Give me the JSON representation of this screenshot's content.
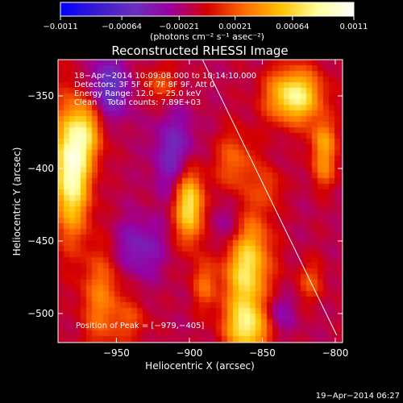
{
  "chart_data": {
    "type": "heatmap",
    "title": "Reconstructed RHESSI Image",
    "xlabel": "Heliocentric X (arcsec)",
    "ylabel": "Heliocentric Y (arcsec)",
    "xlim": [
      -990,
      -795
    ],
    "ylim": [
      -520,
      -325
    ],
    "x_ticks": [
      {
        "value": -950,
        "label": "−950"
      },
      {
        "value": -900,
        "label": "−900"
      },
      {
        "value": -850,
        "label": "−850"
      },
      {
        "value": -800,
        "label": "−800"
      }
    ],
    "y_ticks": [
      {
        "value": -350,
        "label": "−350"
      },
      {
        "value": -400,
        "label": "−400"
      },
      {
        "value": -450,
        "label": "−450"
      },
      {
        "value": -500,
        "label": "−500"
      }
    ],
    "colorbar": {
      "range": [
        -0.0011,
        0.0011
      ],
      "ticks": [
        {
          "value": -0.0011,
          "label": "−0.0011"
        },
        {
          "value": -0.00064,
          "label": "−0.00064"
        },
        {
          "value": -0.00021,
          "label": "−0.00021"
        },
        {
          "value": 0.00021,
          "label": "0.00021"
        },
        {
          "value": 0.00064,
          "label": "0.00064"
        },
        {
          "value": 0.0011,
          "label": "0.0011"
        }
      ],
      "label": "(photons cm⁻² s⁻¹ asec⁻²)",
      "colors": [
        "#0000ff",
        "#3a1bd0",
        "#6a2fbf",
        "#9a00a0",
        "#d40000",
        "#ff6a00",
        "#ffc000",
        "#ffff9a",
        "#ffffff"
      ]
    },
    "info_lines": [
      "18−Apr−2014 10:09:08.000 to 10:14:10.000",
      "Detectors: 3F 5F 6F 7F 8F 9F, Att 0",
      "Energy Range: 12.0 − 25.0 keV",
      "Clean    Total counts: 7.89E+03"
    ],
    "peak_text": "Position of Peak = [−979,−405]",
    "peak": {
      "x": -979,
      "y": -405
    },
    "limb_line": {
      "x": [
        -891,
        -799
      ],
      "y": [
        -325,
        -515
      ]
    },
    "hotspots": [
      {
        "x": -981,
        "y": -400,
        "sx": 9,
        "sy": 30,
        "amp": 0.0011
      },
      {
        "x": -969,
        "y": -374,
        "sx": 8,
        "sy": 15,
        "amp": 0.0005
      },
      {
        "x": -960,
        "y": -490,
        "sx": 10,
        "sy": 25,
        "amp": 0.00045
      },
      {
        "x": -939,
        "y": -505,
        "sx": 8,
        "sy": 10,
        "amp": 0.00025
      },
      {
        "x": -900,
        "y": -425,
        "sx": 7,
        "sy": 18,
        "amp": 0.0009
      },
      {
        "x": -920,
        "y": -342,
        "sx": 10,
        "sy": 9,
        "amp": 0.0003
      },
      {
        "x": -890,
        "y": -480,
        "sx": 6,
        "sy": 12,
        "amp": 0.00035
      },
      {
        "x": -861,
        "y": -465,
        "sx": 11,
        "sy": 28,
        "amp": 0.0009
      },
      {
        "x": -860,
        "y": -510,
        "sx": 11,
        "sy": 12,
        "amp": 0.0007
      },
      {
        "x": -869,
        "y": -395,
        "sx": 10,
        "sy": 15,
        "amp": 0.00035
      },
      {
        "x": -828,
        "y": -350,
        "sx": 13,
        "sy": 13,
        "amp": 0.00095
      },
      {
        "x": -808,
        "y": -380,
        "sx": 6,
        "sy": 10,
        "amp": 0.0005
      },
      {
        "x": -808,
        "y": -400,
        "sx": 6,
        "sy": 10,
        "amp": 0.0004
      },
      {
        "x": -817,
        "y": -478,
        "sx": 7,
        "sy": 10,
        "amp": 0.0003
      },
      {
        "x": -845,
        "y": -412,
        "sx": 6,
        "sy": 10,
        "amp": 0.00025
      }
    ],
    "coldspots": [
      {
        "x": -955,
        "y": -345,
        "sx": 10,
        "sy": 15,
        "amp": -0.0005
      },
      {
        "x": -910,
        "y": -390,
        "sx": 10,
        "sy": 20,
        "amp": -0.0004
      },
      {
        "x": -870,
        "y": -440,
        "sx": 10,
        "sy": 15,
        "amp": -0.0004
      },
      {
        "x": -935,
        "y": -455,
        "sx": 12,
        "sy": 14,
        "amp": -0.00035
      },
      {
        "x": -840,
        "y": -500,
        "sx": 8,
        "sy": 10,
        "amp": -0.0003
      }
    ]
  },
  "footer": {
    "timestamp": "19−Apr−2014 06:27"
  }
}
